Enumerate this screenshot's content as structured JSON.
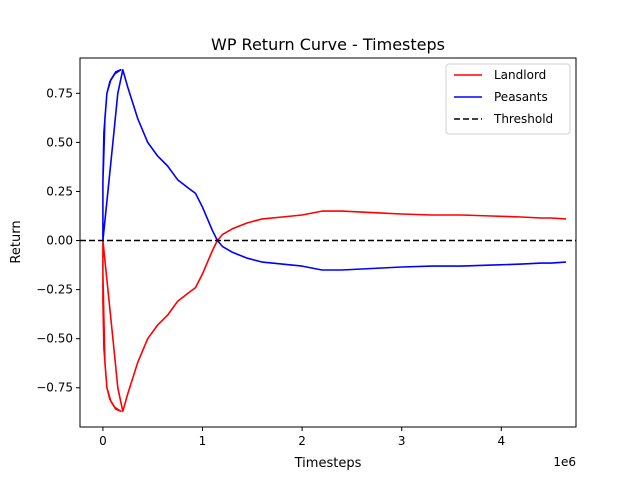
{
  "chart_data": {
    "type": "line",
    "title": "WP Return Curve - Timesteps",
    "xlabel": "Timesteps",
    "ylabel": "Return",
    "x_scale_label": "1e6",
    "xlim": [
      -0.23,
      4.75
    ],
    "ylim": [
      -0.95,
      0.93
    ],
    "x_ticks": [
      0,
      1,
      2,
      3,
      4
    ],
    "x_tick_labels": [
      "0",
      "1",
      "2",
      "3",
      "4"
    ],
    "y_ticks": [
      -0.75,
      -0.5,
      -0.25,
      0.0,
      0.25,
      0.5,
      0.75
    ],
    "y_tick_labels": [
      "−0.75",
      "−0.50",
      "−0.25",
      "0.00",
      "0.25",
      "0.50",
      "0.75"
    ],
    "grid": false,
    "legend_position": "top-right",
    "series": [
      {
        "name": "Landlord",
        "color": "#ff0000",
        "style": "solid",
        "points": [
          [
            0.0,
            -0.17
          ],
          [
            0.01,
            -0.4
          ],
          [
            0.02,
            -0.62
          ],
          [
            0.04,
            -0.75
          ],
          [
            0.07,
            -0.81
          ],
          [
            0.12,
            -0.85
          ],
          [
            0.18,
            -0.87
          ],
          [
            0.13,
            -0.86
          ],
          [
            0.08,
            -0.82
          ],
          [
            0.04,
            -0.75
          ],
          [
            0.01,
            -0.55
          ],
          [
            0.0,
            -0.3
          ],
          [
            0.0,
            0.0
          ],
          [
            0.05,
            -0.25
          ],
          [
            0.1,
            -0.5
          ],
          [
            0.15,
            -0.75
          ],
          [
            0.2,
            -0.87
          ],
          [
            0.25,
            -0.78
          ],
          [
            0.35,
            -0.62
          ],
          [
            0.45,
            -0.5
          ],
          [
            0.55,
            -0.43
          ],
          [
            0.65,
            -0.38
          ],
          [
            0.75,
            -0.31
          ],
          [
            0.85,
            -0.27
          ],
          [
            0.93,
            -0.24
          ],
          [
            1.0,
            -0.17
          ],
          [
            1.05,
            -0.11
          ],
          [
            1.1,
            -0.05
          ],
          [
            1.15,
            0.0
          ],
          [
            1.2,
            0.03
          ],
          [
            1.3,
            0.06
          ],
          [
            1.45,
            0.09
          ],
          [
            1.6,
            0.11
          ],
          [
            1.8,
            0.12
          ],
          [
            2.0,
            0.13
          ],
          [
            2.2,
            0.15
          ],
          [
            2.4,
            0.15
          ],
          [
            2.6,
            0.145
          ],
          [
            2.8,
            0.14
          ],
          [
            3.0,
            0.135
          ],
          [
            3.3,
            0.13
          ],
          [
            3.6,
            0.13
          ],
          [
            3.9,
            0.125
          ],
          [
            4.2,
            0.12
          ],
          [
            4.4,
            0.115
          ],
          [
            4.5,
            0.115
          ],
          [
            4.65,
            0.11
          ]
        ]
      },
      {
        "name": "Peasants",
        "color": "#0000ff",
        "style": "solid",
        "points": [
          [
            0.0,
            0.3
          ],
          [
            0.01,
            0.45
          ],
          [
            0.02,
            0.62
          ],
          [
            0.04,
            0.75
          ],
          [
            0.07,
            0.81
          ],
          [
            0.12,
            0.85
          ],
          [
            0.18,
            0.87
          ],
          [
            0.13,
            0.86
          ],
          [
            0.08,
            0.82
          ],
          [
            0.04,
            0.75
          ],
          [
            0.01,
            0.55
          ],
          [
            0.0,
            0.3
          ],
          [
            0.0,
            0.0
          ],
          [
            0.05,
            0.25
          ],
          [
            0.1,
            0.5
          ],
          [
            0.15,
            0.75
          ],
          [
            0.2,
            0.87
          ],
          [
            0.25,
            0.78
          ],
          [
            0.35,
            0.62
          ],
          [
            0.45,
            0.5
          ],
          [
            0.55,
            0.43
          ],
          [
            0.65,
            0.38
          ],
          [
            0.75,
            0.31
          ],
          [
            0.85,
            0.27
          ],
          [
            0.93,
            0.24
          ],
          [
            1.0,
            0.17
          ],
          [
            1.05,
            0.11
          ],
          [
            1.1,
            0.05
          ],
          [
            1.15,
            0.0
          ],
          [
            1.2,
            -0.03
          ],
          [
            1.3,
            -0.06
          ],
          [
            1.45,
            -0.09
          ],
          [
            1.6,
            -0.11
          ],
          [
            1.8,
            -0.12
          ],
          [
            2.0,
            -0.13
          ],
          [
            2.2,
            -0.15
          ],
          [
            2.4,
            -0.15
          ],
          [
            2.6,
            -0.145
          ],
          [
            2.8,
            -0.14
          ],
          [
            3.0,
            -0.135
          ],
          [
            3.3,
            -0.13
          ],
          [
            3.6,
            -0.13
          ],
          [
            3.9,
            -0.125
          ],
          [
            4.2,
            -0.12
          ],
          [
            4.4,
            -0.115
          ],
          [
            4.5,
            -0.115
          ],
          [
            4.65,
            -0.11
          ]
        ]
      },
      {
        "name": "Threshold",
        "color": "#000000",
        "style": "dashed",
        "points": [
          [
            -0.23,
            0.0
          ],
          [
            4.75,
            0.0
          ]
        ]
      }
    ]
  }
}
